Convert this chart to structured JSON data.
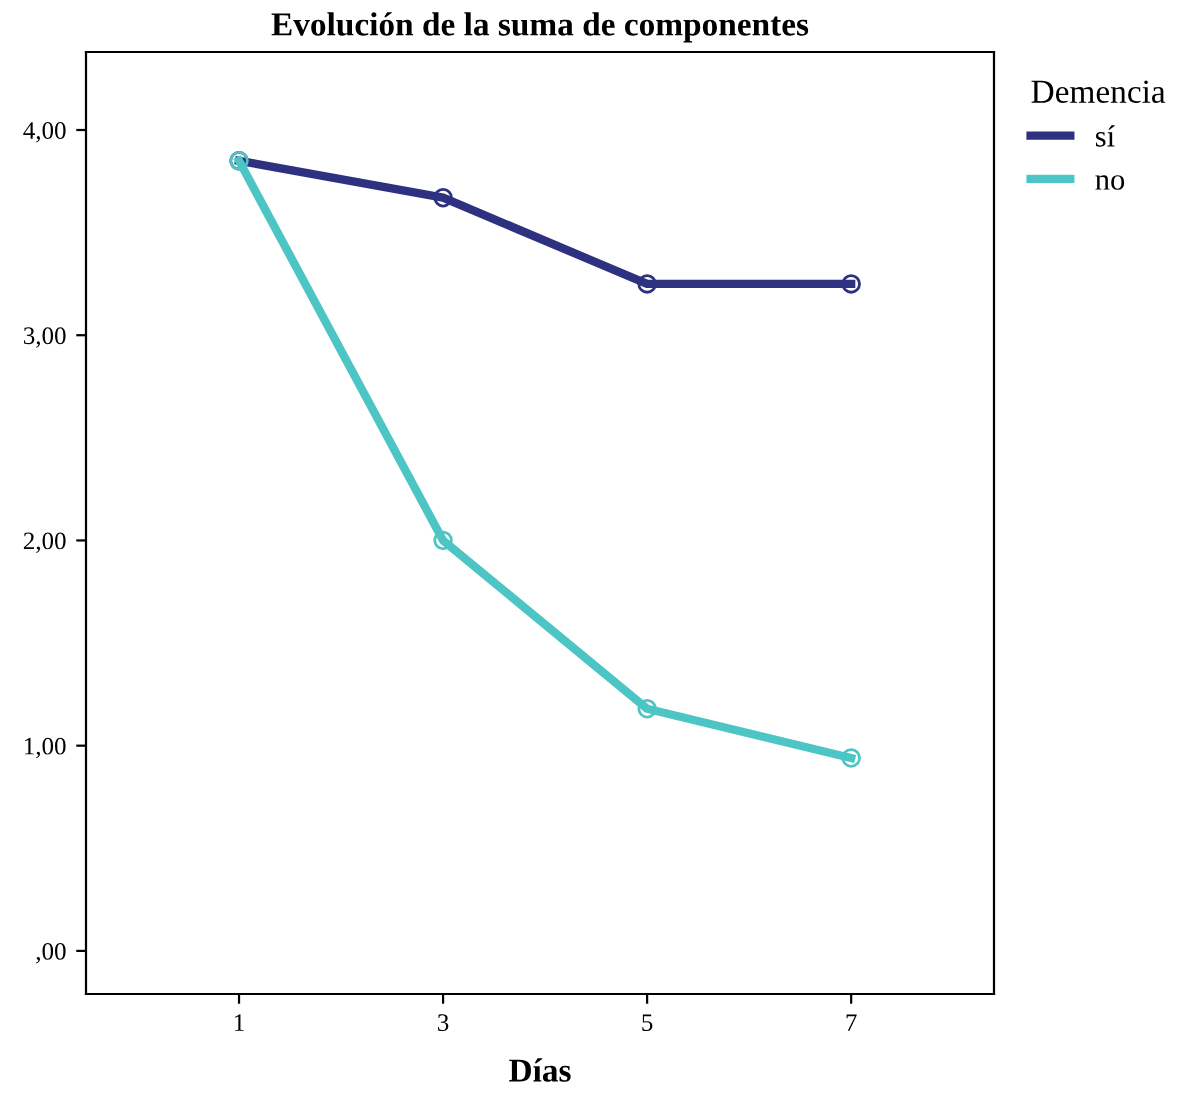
{
  "chart_data": {
    "type": "line",
    "title": "Evolución de la suma de componentes",
    "xlabel": "Días",
    "legend_title": "Demencia",
    "categories": [
      "1",
      "3",
      "5",
      "7"
    ],
    "series": [
      {
        "name": "sí",
        "color": "#2e3180",
        "values": [
          3.85,
          3.67,
          3.25,
          3.25
        ]
      },
      {
        "name": "no",
        "color": "#4ec5c5",
        "values": [
          3.85,
          2.0,
          1.18,
          0.94
        ]
      }
    ],
    "ylim": [
      -0.21,
      4.38
    ],
    "yticks": [
      {
        "value": 0,
        "label": ",00"
      },
      {
        "value": 1,
        "label": "1,00"
      },
      {
        "value": 2,
        "label": "2,00"
      },
      {
        "value": 3,
        "label": "3,00"
      },
      {
        "value": 4,
        "label": "4,00"
      }
    ],
    "marker": "circle",
    "line_style": "solid",
    "grid": false,
    "legend": "top right"
  }
}
